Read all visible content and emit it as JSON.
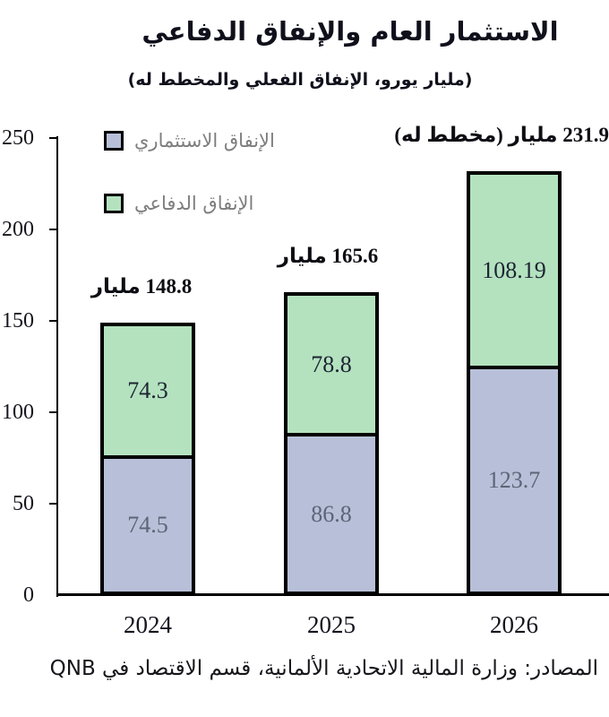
{
  "title": "الاستثمار العام والإنفاق الدفاعي",
  "subtitle": "(مليار يورو، الإنفاق الفعلي والمخطط له)",
  "legend": [
    {
      "label": "الإنفاق الاستثماري",
      "color": "#b7c0d8"
    },
    {
      "label": "الإنفاق الدفاعي",
      "color": "#b4e2bf"
    }
  ],
  "chart_data": {
    "type": "bar",
    "stacked": true,
    "title": "الاستثمار العام والإنفاق الدفاعي",
    "subtitle": "(مليار يورو، الإنفاق الفعلي والمخطط له)",
    "categories": [
      "2024",
      "2025",
      "2026"
    ],
    "series": [
      {
        "name": "الإنفاق الاستثماري",
        "color": "#b7c0d8",
        "label_color": "#5c6577",
        "values": [
          74.5,
          86.8,
          123.7
        ]
      },
      {
        "name": "الإنفاق الدفاعي",
        "color": "#b4e2bf",
        "label_color": "#1d2433",
        "values": [
          74.3,
          78.8,
          108.19
        ]
      }
    ],
    "totals": [
      148.8,
      165.6,
      231.9
    ],
    "total_labels": [
      "148.8 مليار",
      "165.6 مليار",
      "231.9 مليار (مخطط له)"
    ],
    "y_ticks": [
      0,
      50,
      100,
      150,
      200,
      250
    ],
    "ylim": [
      0,
      250
    ],
    "grid": false,
    "legend_position": "inside-top-left"
  },
  "source": "المصادر: وزارة المالية الاتحادية الألمانية، قسم الاقتصاد في QNB",
  "colors": {
    "investment_fill": "#b7c0d8",
    "defense_fill": "#b4e2bf",
    "bar_border": "#000000",
    "axis": "#000000",
    "legend_text": "#7d7d7d"
  }
}
